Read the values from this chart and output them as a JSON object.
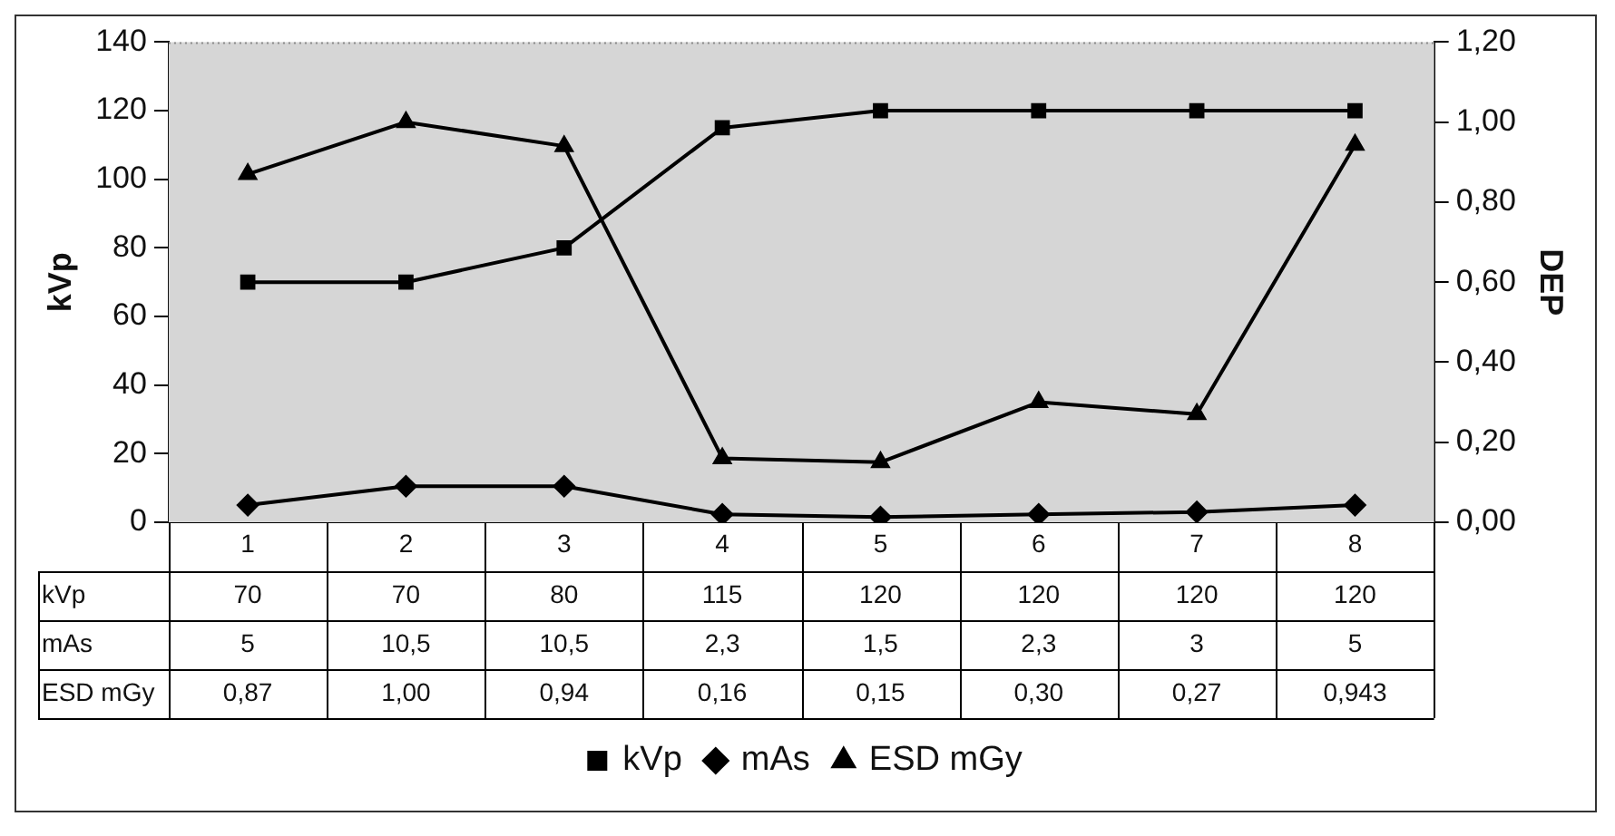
{
  "chart_data": {
    "type": "line",
    "ylabel": "kVp",
    "y2label": "DEP",
    "categories": [
      "1",
      "2",
      "3",
      "4",
      "5",
      "6",
      "7",
      "8"
    ],
    "series": [
      {
        "name": "kVp",
        "color": "#000000",
        "marker": "square",
        "values": [
          70,
          70,
          80,
          115,
          120,
          120,
          120,
          120
        ],
        "value_labels": [
          "70",
          "70",
          "80",
          "115",
          "120",
          "120",
          "120",
          "120"
        ]
      },
      {
        "name": "mAs",
        "color": "#000000",
        "marker": "diamond",
        "values": [
          5,
          10.5,
          10.5,
          2.3,
          1.5,
          2.3,
          3,
          5
        ],
        "value_labels": [
          "5",
          "10,5",
          "10,5",
          "2,3",
          "1,5",
          "2,3",
          "3",
          "5"
        ]
      },
      {
        "name": "ESD mGy",
        "color": "#000000",
        "marker": "triangle",
        "axis": "y2",
        "values": [
          0.87,
          1.0,
          0.94,
          0.16,
          0.15,
          0.3,
          0.27,
          0.943
        ],
        "value_labels": [
          "0,87",
          "1,00",
          "0,94",
          "0,16",
          "0,15",
          "0,30",
          "0,27",
          "0,943"
        ]
      }
    ],
    "ylim": [
      0,
      140
    ],
    "yticks": [
      0,
      20,
      40,
      60,
      80,
      100,
      120,
      140
    ],
    "y2lim": [
      0,
      1.2
    ],
    "y2ticks": [
      {
        "value": 0,
        "label": "0,00"
      },
      {
        "value": 0.2,
        "label": "0,20"
      },
      {
        "value": 0.4,
        "label": "0,40"
      },
      {
        "value": 0.6,
        "label": "0,60"
      },
      {
        "value": 0.8,
        "label": "0,80"
      },
      {
        "value": 1.0,
        "label": "1,00"
      },
      {
        "value": 1.2,
        "label": "1,20"
      }
    ],
    "grid": false,
    "legend": "bottom",
    "line_style": "solid"
  }
}
